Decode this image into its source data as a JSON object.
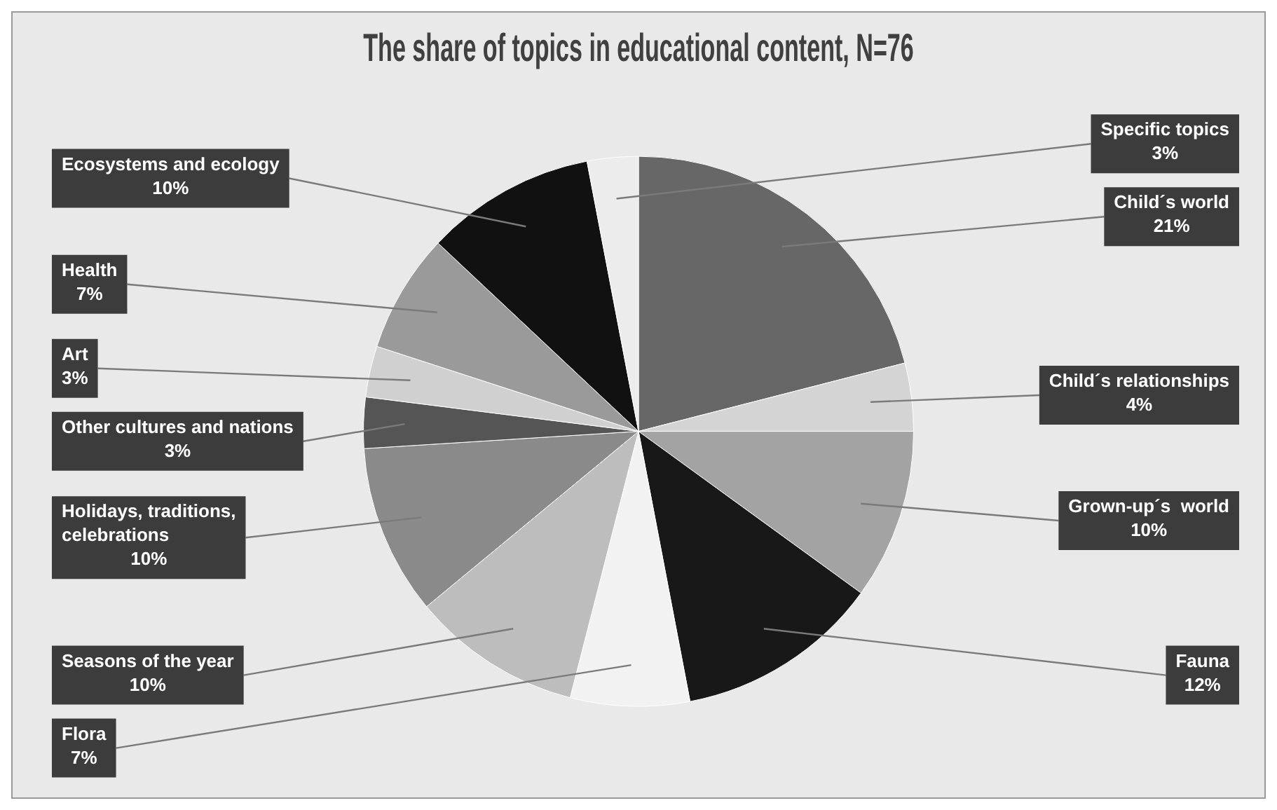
{
  "chart_data": {
    "type": "pie",
    "title": "The share of topics in educational content, N=76",
    "categories": [
      "Child´s world",
      "Child´s relationships",
      "Grown-up´s  world",
      "Fauna",
      "Flora",
      "Seasons of the year",
      "Holidays, traditions, celebrations",
      "Other cultures and nations",
      "Art",
      "Health",
      "Ecosystems and ecology",
      "Specific topics"
    ],
    "values": [
      21,
      4,
      10,
      12,
      7,
      10,
      10,
      3,
      3,
      7,
      10,
      3
    ],
    "value_labels": [
      "21%",
      "4%",
      "10%",
      "12%",
      "7%",
      "10%",
      "10%",
      "3%",
      "3%",
      "7%",
      "10%",
      "3%"
    ],
    "colors": [
      "#676767",
      "#d4d4d4",
      "#a3a3a3",
      "#181818",
      "#f2f2f2",
      "#bdbdbd",
      "#8a8a8a",
      "#555555",
      "#d0d0d0",
      "#9a9a9a",
      "#111111",
      "#ececec"
    ],
    "legend": false
  }
}
